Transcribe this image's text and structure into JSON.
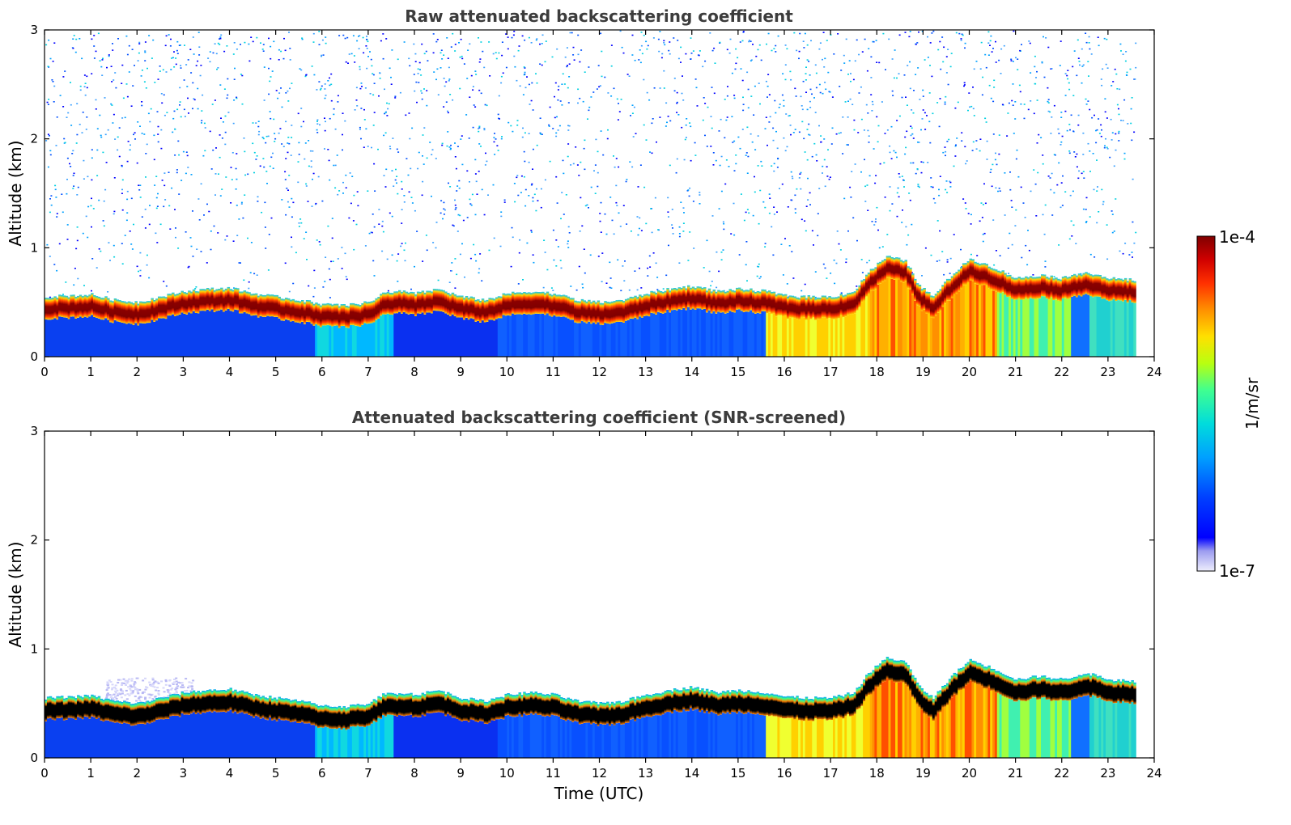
{
  "chart_data": [
    {
      "type": "heatmap",
      "title": "Raw attenuated backscattering coefficient",
      "xlabel": "",
      "ylabel": "Altitude (km)",
      "xlim": [
        0,
        24
      ],
      "ylim": [
        0,
        3
      ],
      "xticks": [
        "0",
        "1",
        "2",
        "3",
        "4",
        "5",
        "6",
        "7",
        "8",
        "9",
        "10",
        "11",
        "12",
        "13",
        "14",
        "15",
        "16",
        "17",
        "18",
        "19",
        "20",
        "21",
        "22",
        "23",
        "24"
      ],
      "yticks": [
        "0",
        "1",
        "2",
        "3"
      ],
      "data_end_time": 23.6,
      "layer_top_km": [
        [
          0,
          0.55
        ],
        [
          1,
          0.57
        ],
        [
          1.5,
          0.52
        ],
        [
          2,
          0.5
        ],
        [
          2.5,
          0.55
        ],
        [
          3,
          0.6
        ],
        [
          3.5,
          0.62
        ],
        [
          4,
          0.63
        ],
        [
          4.5,
          0.58
        ],
        [
          5,
          0.55
        ],
        [
          5.5,
          0.52
        ],
        [
          6,
          0.48
        ],
        [
          6.5,
          0.47
        ],
        [
          7,
          0.5
        ],
        [
          7.3,
          0.58
        ],
        [
          7.7,
          0.6
        ],
        [
          8,
          0.58
        ],
        [
          8.5,
          0.62
        ],
        [
          9,
          0.55
        ],
        [
          9.5,
          0.52
        ],
        [
          10,
          0.58
        ],
        [
          10.5,
          0.6
        ],
        [
          11,
          0.58
        ],
        [
          11.5,
          0.52
        ],
        [
          12,
          0.5
        ],
        [
          12.5,
          0.52
        ],
        [
          13,
          0.58
        ],
        [
          13.5,
          0.62
        ],
        [
          14,
          0.65
        ],
        [
          14.5,
          0.6
        ],
        [
          15,
          0.62
        ],
        [
          15.6,
          0.6
        ],
        [
          16,
          0.56
        ],
        [
          16.5,
          0.55
        ],
        [
          17,
          0.55
        ],
        [
          17.5,
          0.6
        ],
        [
          17.8,
          0.78
        ],
        [
          18.2,
          0.92
        ],
        [
          18.6,
          0.88
        ],
        [
          18.9,
          0.65
        ],
        [
          19.2,
          0.55
        ],
        [
          19.6,
          0.75
        ],
        [
          20,
          0.9
        ],
        [
          20.5,
          0.82
        ],
        [
          21,
          0.72
        ],
        [
          21.5,
          0.75
        ],
        [
          22,
          0.72
        ],
        [
          22.5,
          0.78
        ],
        [
          23,
          0.72
        ],
        [
          23.6,
          0.7
        ]
      ],
      "layer_thickness_km": 0.2
    },
    {
      "type": "heatmap",
      "title": "Attenuated backscattering coefficient (SNR-screened)",
      "xlabel": "Time (UTC)",
      "ylabel": "Altitude (km)",
      "xlim": [
        0,
        24
      ],
      "ylim": [
        0,
        3
      ],
      "xticks": [
        "0",
        "1",
        "2",
        "3",
        "4",
        "5",
        "6",
        "7",
        "8",
        "9",
        "10",
        "11",
        "12",
        "13",
        "14",
        "15",
        "16",
        "17",
        "18",
        "19",
        "20",
        "21",
        "22",
        "23",
        "24"
      ],
      "yticks": [
        "0",
        "1",
        "2",
        "3"
      ],
      "data_end_time": 23.6
    }
  ],
  "colorbar": {
    "label": "1/m/sr",
    "max_label": "1e-4",
    "min_label": "1e-7",
    "colors": [
      "#e6e6fa",
      "#9999ee",
      "#0000ff",
      "#0050ff",
      "#00a0ff",
      "#00e0e0",
      "#40ff80",
      "#c0ff00",
      "#ffe000",
      "#ff9000",
      "#ff3000",
      "#d00000",
      "#800000"
    ]
  }
}
